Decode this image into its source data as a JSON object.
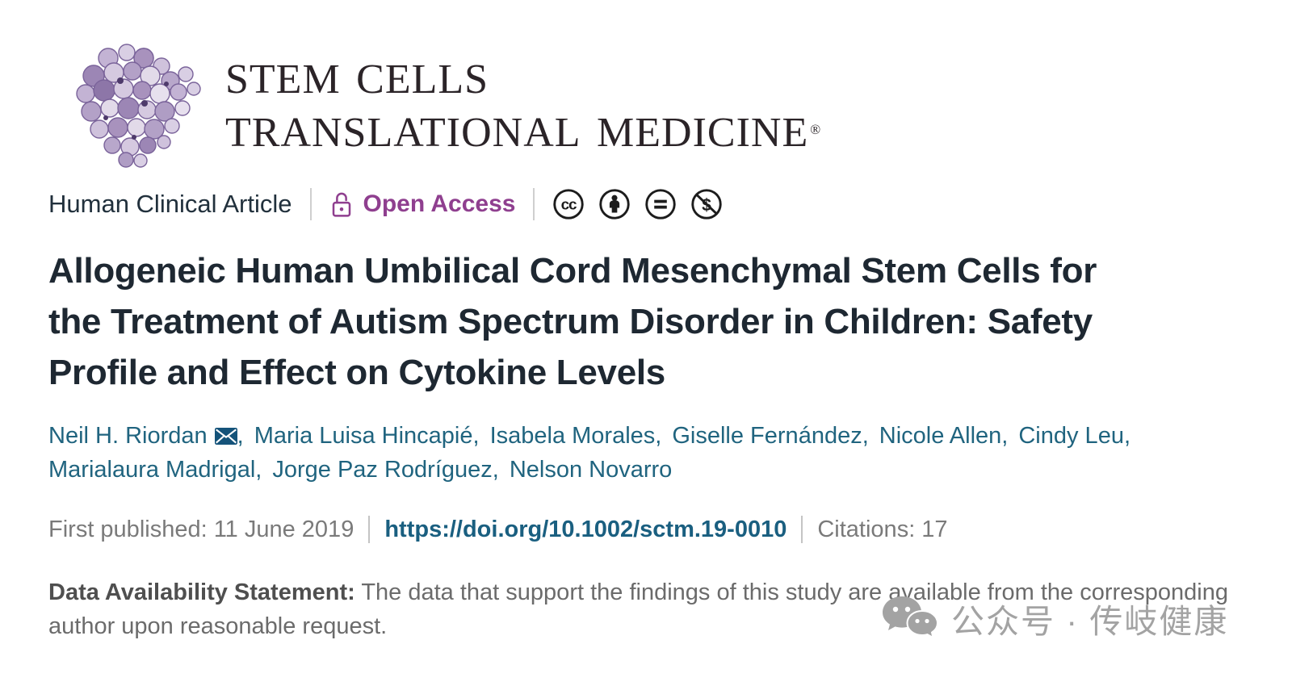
{
  "journal": {
    "logo_line1": "Stem Cells",
    "logo_line2": "Translational Medicine",
    "registered_mark": "®",
    "logo_art": "stem-cell-cluster-image"
  },
  "meta_bar": {
    "article_type": "Human Clinical Article",
    "open_access_label": "Open Access",
    "open_access_icon": "lock-icon",
    "license_icons": [
      "cc-icon",
      "by-person-icon",
      "nd-equals-icon",
      "nc-dollar-icon"
    ]
  },
  "article": {
    "title_lines": [
      "Allogeneic Human Umbilical Cord Mesenchymal Stem Cells for",
      "the Treatment of Autism Spectrum Disorder in Children: Safety",
      "Profile and Effect on Cytokine Levels"
    ],
    "author_lines": [
      [
        {
          "name": "Neil H. Riordan",
          "corresponding": true,
          "sep": ","
        },
        {
          "name": "Maria Luisa Hincapié",
          "sep": ","
        },
        {
          "name": "Isabela Morales",
          "sep": ","
        },
        {
          "name": "Giselle Fernández",
          "sep": ","
        },
        {
          "name": "Nicole Allen",
          "sep": ","
        },
        {
          "name": "Cindy Leu",
          "sep": ","
        }
      ],
      [
        {
          "name": "Marialaura Madrigal",
          "sep": ","
        },
        {
          "name": "Jorge Paz Rodríguez",
          "sep": ","
        },
        {
          "name": "Nelson Novarro",
          "sep": ""
        }
      ]
    ],
    "corresponding_icon": "envelope-icon",
    "first_published": "First published: 11 June 2019",
    "doi_url": "https://doi.org/10.1002/sctm.19-0010",
    "citations": "Citations: 17"
  },
  "data_availability": {
    "label": "Data Availability Statement:",
    "text": "The data that support the findings of this study are available from the corresponding author upon reasonable request."
  },
  "watermark": {
    "icon": "wechat-icon",
    "text": "公众号 · 传岐健康"
  },
  "colors": {
    "open_access_purple": "#8f3f8f",
    "author_teal": "#20647f",
    "doi_link_teal": "#1a5f80",
    "muted_gray": "#7a7a7a",
    "title_dark": "#1e2832",
    "watermark_gray": "#a3a3a3",
    "logo_purple": "#9c86b5"
  }
}
